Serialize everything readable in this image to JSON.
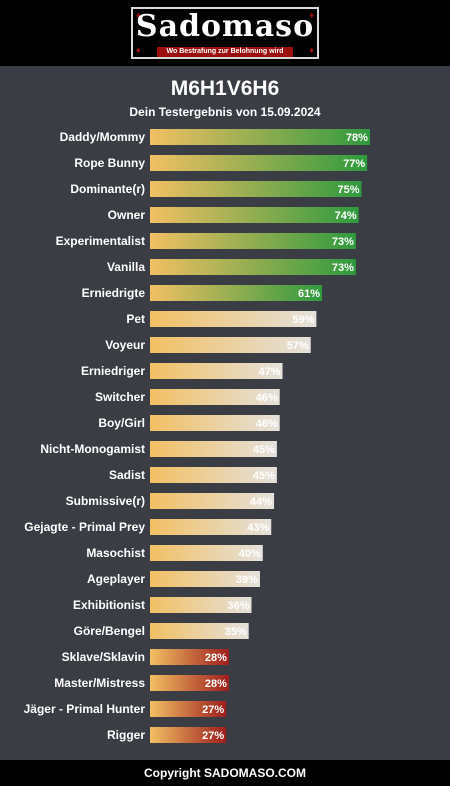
{
  "header": {
    "logo_word": "Sadomaso",
    "logo_tagline": "Wo Bestrafung zur Belohnung wird",
    "logo_corner_glyph": "♦"
  },
  "chart_data": {
    "type": "bar",
    "orientation": "horizontal",
    "title": "M6H1V6H6",
    "subtitle": "Dein Testergebnis von 15.09.2024",
    "xlim": [
      0,
      100
    ],
    "grid": false,
    "legend": "none",
    "value_suffix": "%",
    "categories": [
      "Daddy/Mommy",
      "Rope Bunny",
      "Dominante(r)",
      "Owner",
      "Experimentalist",
      "Vanilla",
      "Erniedrigte",
      "Pet",
      "Voyeur",
      "Erniedriger",
      "Switcher",
      "Boy/Girl",
      "Nicht-Monogamist",
      "Sadist",
      "Submissive(r)",
      "Gejagte - Primal Prey",
      "Masochist",
      "Ageplayer",
      "Exhibitionist",
      "Göre/Bengel",
      "Sklave/Sklavin",
      "Master/Mistress",
      "Jäger - Primal Hunter",
      "Rigger"
    ],
    "values": [
      78,
      77,
      75,
      74,
      73,
      73,
      61,
      59,
      57,
      47,
      46,
      46,
      45,
      45,
      44,
      43,
      40,
      39,
      36,
      35,
      28,
      28,
      27,
      27
    ],
    "colors": {
      "gradient_start": "#f2c063",
      "high_end": "#2f9a3e",
      "mid_end": "#e4e1dc",
      "low_end": "#9e1d1d"
    }
  },
  "footer": {
    "copyright": "Copyright SADOMASO.COM"
  }
}
